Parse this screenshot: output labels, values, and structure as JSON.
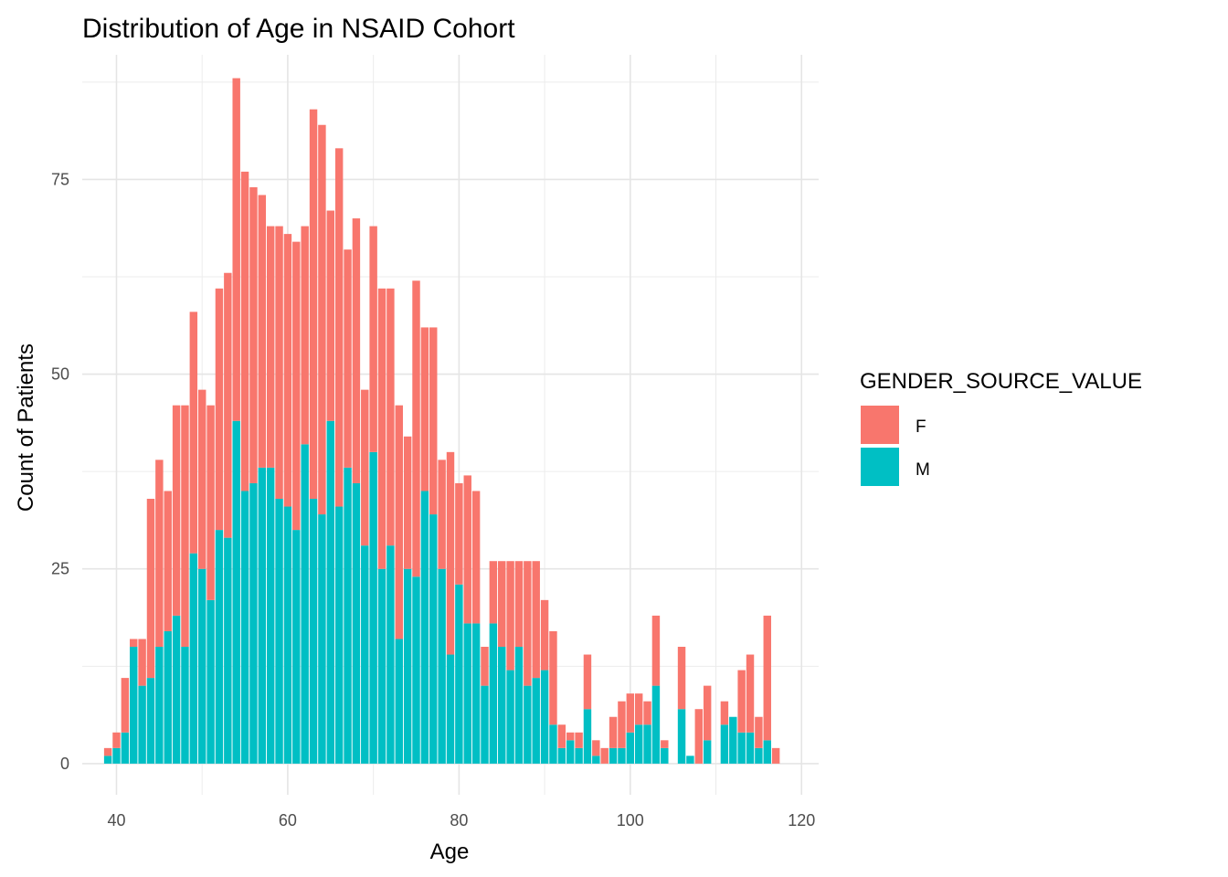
{
  "chart_data": {
    "type": "bar",
    "stacked": true,
    "title": "Distribution of Age in NSAID Cohort",
    "xlabel": "Age",
    "ylabel": "Count of Patients",
    "xlim": [
      36,
      122
    ],
    "ylim": [
      -4,
      91
    ],
    "x_ticks": [
      40,
      60,
      80,
      100,
      120
    ],
    "y_ticks": [
      0,
      25,
      50,
      75
    ],
    "grid": true,
    "legend": {
      "title": "GENDER_SOURCE_VALUE",
      "placement": "right"
    },
    "x": [
      39,
      40,
      41,
      42,
      43,
      44,
      45,
      46,
      47,
      48,
      49,
      50,
      51,
      52,
      53,
      54,
      55,
      56,
      57,
      58,
      59,
      60,
      61,
      62,
      63,
      64,
      65,
      66,
      67,
      68,
      69,
      70,
      71,
      72,
      73,
      74,
      75,
      76,
      77,
      78,
      79,
      80,
      81,
      82,
      83,
      84,
      85,
      86,
      87,
      88,
      89,
      90,
      91,
      92,
      93,
      94,
      95,
      96,
      97,
      98,
      99,
      100,
      101,
      102,
      103,
      104,
      105,
      106,
      107,
      108,
      109,
      110,
      111,
      112,
      113,
      114,
      115,
      116,
      117
    ],
    "series": [
      {
        "name": "M",
        "color": "#00BFC4",
        "values": [
          1,
          2,
          4,
          15,
          10,
          11,
          15,
          17,
          19,
          15,
          27,
          25,
          21,
          30,
          29,
          44,
          35,
          36,
          38,
          38,
          34,
          33,
          30,
          41,
          34,
          32,
          44,
          33,
          38,
          36,
          28,
          40,
          25,
          28,
          16,
          25,
          24,
          35,
          32,
          25,
          14,
          23,
          18,
          18,
          10,
          18,
          15,
          12,
          15,
          10,
          11,
          12,
          5,
          2,
          3,
          2,
          7,
          1,
          0,
          2,
          2,
          4,
          5,
          5,
          10,
          2,
          0,
          7,
          1,
          0,
          3,
          0,
          5,
          6,
          4,
          4,
          2,
          3,
          0
        ]
      },
      {
        "name": "F",
        "color": "#F8766D",
        "values": [
          1,
          2,
          7,
          1,
          6,
          23,
          24,
          18,
          27,
          31,
          31,
          23,
          25,
          31,
          34,
          44,
          41,
          38,
          35,
          31,
          35,
          35,
          37,
          28,
          50,
          50,
          27,
          46,
          28,
          34,
          20,
          29,
          36,
          33,
          30,
          17,
          38,
          21,
          24,
          14,
          26,
          13,
          19,
          17,
          5,
          8,
          11,
          14,
          11,
          16,
          15,
          9,
          12,
          3,
          1,
          2,
          7,
          2,
          2,
          4,
          6,
          5,
          4,
          3,
          9,
          1,
          0,
          8,
          0,
          7,
          7,
          0,
          3,
          0,
          8,
          10,
          4,
          16,
          2
        ]
      }
    ]
  }
}
